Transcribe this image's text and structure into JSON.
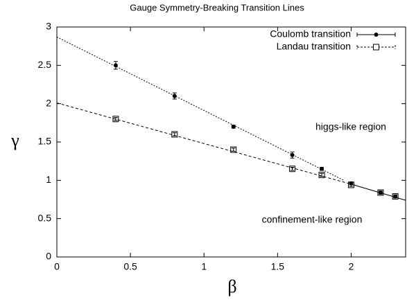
{
  "chart_data": {
    "type": "scatter",
    "title": "Gauge Symmetry-Breaking Transition Lines",
    "x_label": "β",
    "y_label": "γ",
    "xlim": [
      0,
      2.37
    ],
    "ylim": [
      0,
      3
    ],
    "xticks": [
      0,
      0.5,
      1,
      1.5,
      2
    ],
    "yticks": [
      0,
      0.5,
      1,
      1.5,
      2,
      2.5,
      3
    ],
    "legend": "top-right",
    "series": [
      {
        "name": "Coulomb transition",
        "color": "#000000",
        "marker": "circle",
        "x": [
          0.4,
          0.8,
          1.2,
          1.6,
          1.8,
          2.0,
          2.2,
          2.3
        ],
        "values": [
          2.5,
          2.1,
          1.7,
          1.33,
          1.15,
          0.96,
          0.84,
          0.79
        ],
        "errors": [
          0.05,
          0.04,
          0.02,
          0.04,
          0.02,
          0.02,
          0.02,
          0.02
        ]
      },
      {
        "name": "Landau transition",
        "color": "#000000",
        "marker": "square",
        "x": [
          0.4,
          0.8,
          1.2,
          1.6,
          1.8,
          2.0,
          2.2,
          2.3
        ],
        "values": [
          1.8,
          1.6,
          1.4,
          1.15,
          1.07,
          0.94,
          0.84,
          0.79
        ],
        "errors": [
          0.02,
          0.02,
          0.02,
          0.02,
          0.02,
          0.02,
          0.02,
          0.02
        ]
      }
    ],
    "fit_lines": [
      {
        "style": "dotted",
        "x": [
          0,
          1.95
        ],
        "values": [
          2.87,
          1.0
        ]
      },
      {
        "style": "dashed",
        "x": [
          0,
          2.0
        ],
        "values": [
          2.01,
          0.95
        ]
      },
      {
        "style": "solid",
        "x": [
          2.0,
          2.37
        ],
        "values": [
          0.95,
          0.74
        ]
      }
    ],
    "annotations": [
      "higgs-like region",
      "confinement-like region"
    ]
  }
}
